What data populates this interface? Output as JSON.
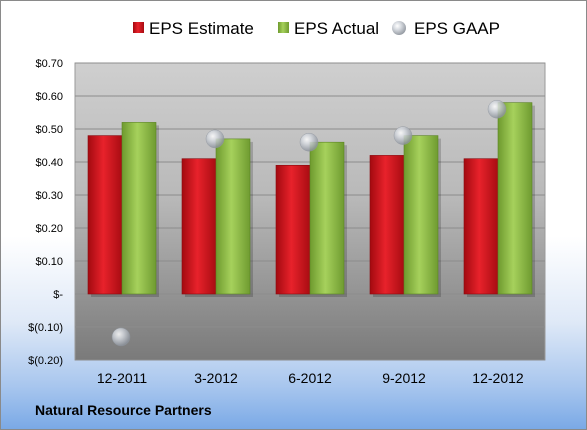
{
  "company": "Natural Resource Partners",
  "colors": {
    "estimate": "#d9131c",
    "actual": "#8fc04a",
    "gaap": "#b9bec7"
  },
  "chart_data": {
    "type": "bar",
    "title": "",
    "xlabel": "",
    "ylabel": "",
    "categories": [
      "12-2011",
      "3-2012",
      "6-2012",
      "9-2012",
      "12-2012"
    ],
    "series": [
      {
        "name": "EPS Estimate",
        "type": "bar",
        "values": [
          0.48,
          0.41,
          0.39,
          0.42,
          0.41
        ]
      },
      {
        "name": "EPS Actual",
        "type": "bar",
        "values": [
          0.52,
          0.47,
          0.46,
          0.48,
          0.58
        ]
      },
      {
        "name": "EPS GAAP",
        "type": "scatter",
        "values": [
          -0.13,
          0.47,
          0.46,
          0.48,
          0.56
        ]
      }
    ],
    "ylim": [
      -0.2,
      0.7
    ],
    "yticks": [
      0.7,
      0.6,
      0.5,
      0.4,
      0.3,
      0.2,
      0.1,
      0,
      -0.1,
      -0.2
    ],
    "ytick_labels": [
      "$0.70",
      "$0.60",
      "$0.50",
      "$0.40",
      "$0.30",
      "$0.20",
      "$0.10",
      "$-",
      "$(0.10)",
      "$(0.20)"
    ],
    "grid": true,
    "legend": "top-center"
  }
}
